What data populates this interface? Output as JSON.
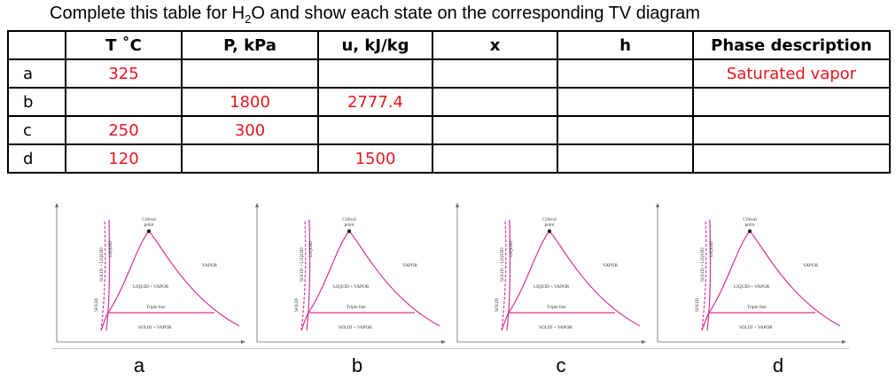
{
  "title": {
    "before": "Complete this table for H",
    "sub": "2",
    "after": "O and show each state on the corresponding TV diagram"
  },
  "table": {
    "headers": [
      "",
      "T ˚C",
      "P, kPa",
      "u, kJ/kg",
      "x",
      "h",
      "Phase description"
    ],
    "rows": [
      {
        "label": "a",
        "T": "325",
        "P": "",
        "u": "",
        "x": "",
        "h": "",
        "phase": "Saturated vapor"
      },
      {
        "label": "b",
        "T": "",
        "P": "1800",
        "u": "2777.4",
        "x": "",
        "h": "",
        "phase": ""
      },
      {
        "label": "c",
        "T": "250",
        "P": "300",
        "u": "",
        "x": "",
        "h": "",
        "phase": ""
      },
      {
        "label": "d",
        "T": "120",
        "P": "",
        "u": "1500",
        "x": "",
        "h": "",
        "phase": ""
      }
    ],
    "value_color": "#e8161f"
  },
  "diagram_labels": {
    "critical_point": [
      "Critical",
      "point"
    ],
    "vapor": "VAPOR",
    "liquid_vapor": "LIQUID + VAPOR",
    "triple_line": "Triple line",
    "solid_vapor": "SOLID + VAPOR",
    "solid": "SOLID",
    "solid_liquid": "SOLID + LIQUID",
    "liquid": "LIQUID",
    "dome_color": "#d6338f"
  },
  "diagrams": [
    {
      "caption": "a"
    },
    {
      "caption": "b"
    },
    {
      "caption": "c"
    },
    {
      "caption": "d"
    }
  ]
}
